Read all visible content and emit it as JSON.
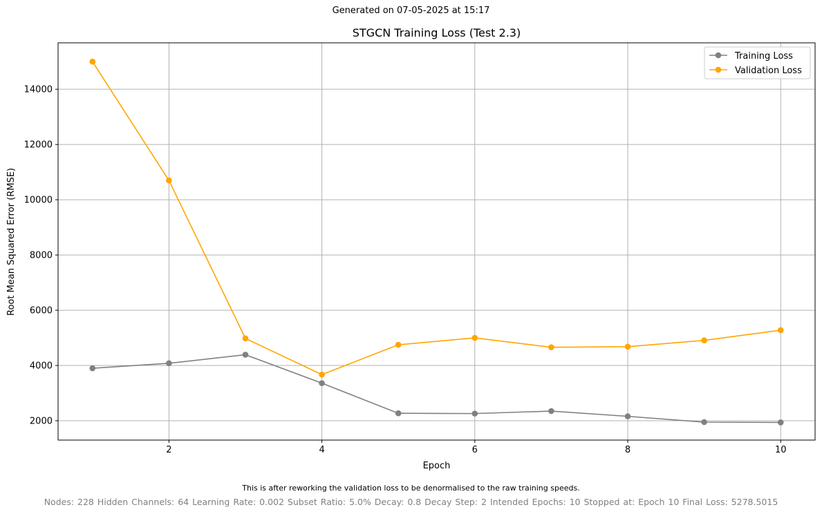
{
  "header": {
    "generated": "Generated on 07-05-2025 at 15:17"
  },
  "footer": {
    "note": "This is after reworking the validation loss to be denormalised to the raw training speeds.",
    "params": "Nodes: 228    Hidden Channels: 64    Learning Rate: 0.002    Subset Ratio: 5.0%   Decay: 0.8    Decay Step: 2    Intended Epochs: 10    Stopped at: Epoch 10    Final Loss: 5278.5015"
  },
  "chart_data": {
    "type": "line",
    "title": "STGCN Training Loss (Test 2.3)",
    "xlabel": "Epoch",
    "ylabel": "Root Mean Squared Error (RMSE)",
    "x": [
      1,
      2,
      3,
      4,
      5,
      6,
      7,
      8,
      9,
      10
    ],
    "xlim": [
      0.55,
      10.45
    ],
    "ylim": [
      1300,
      15680
    ],
    "xticks": [
      2,
      4,
      6,
      8,
      10
    ],
    "yticks": [
      2000,
      4000,
      6000,
      8000,
      10000,
      12000,
      14000
    ],
    "grid": true,
    "legend": "top-right",
    "series": [
      {
        "name": "Training Loss",
        "color": "#808080",
        "values": [
          3900,
          4080,
          4390,
          3360,
          2270,
          2260,
          2350,
          2160,
          1950,
          1940
        ]
      },
      {
        "name": "Validation Loss",
        "color": "#ffa500",
        "values": [
          15000,
          10700,
          4980,
          3670,
          4750,
          5000,
          4660,
          4680,
          4910,
          5278.5015
        ]
      }
    ]
  }
}
